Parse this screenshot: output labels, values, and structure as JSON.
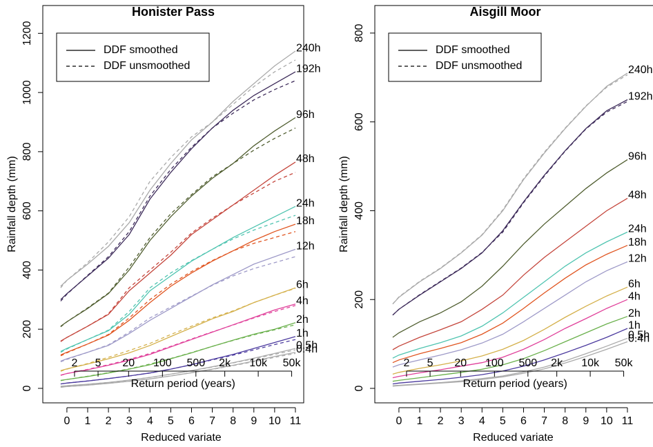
{
  "chart_data": [
    {
      "type": "line",
      "title": "Honister Pass",
      "xlabel": "Reduced variate",
      "ylabel": "Rainfall depth (mm)",
      "legend": [
        "DDF smoothed",
        "DDF unsmoothed"
      ],
      "x": [
        -0.3,
        0,
        1,
        2,
        3,
        4,
        5,
        6,
        7,
        8,
        9,
        10,
        11
      ],
      "xlim": [
        -1.16,
        11.4
      ],
      "ylim": [
        -49,
        1294
      ],
      "xticks": [
        0,
        1,
        2,
        3,
        4,
        5,
        6,
        7,
        8,
        9,
        10,
        11
      ],
      "yticks": [
        0,
        200,
        400,
        600,
        800,
        1000,
        1200
      ],
      "rp_label": "Return period (years)",
      "rp_ticks": [
        {
          "value": 0.367,
          "label": "2"
        },
        {
          "value": 1.5,
          "label": "5"
        },
        {
          "value": 2.97,
          "label": "20"
        },
        {
          "value": 4.6,
          "label": "100"
        },
        {
          "value": 6.21,
          "label": "500"
        },
        {
          "value": 7.6,
          "label": "2k"
        },
        {
          "value": 9.21,
          "label": "10k"
        },
        {
          "value": 10.82,
          "label": "50k"
        }
      ],
      "series": [
        {
          "name": "240h",
          "color": "#aaaaaa",
          "label_color": "#aaaaaa",
          "smoothed": [
            345,
            365,
            420,
            480,
            560,
            670,
            760,
            840,
            900,
            970,
            1030,
            1090,
            1140
          ],
          "unsmoothed": [
            340,
            365,
            425,
            495,
            580,
            700,
            780,
            850,
            900,
            960,
            1020,
            1070,
            1110
          ]
        },
        {
          "name": "192h",
          "color": "#3d2b5a",
          "label_color": "#000000",
          "smoothed": [
            300,
            320,
            380,
            440,
            520,
            640,
            730,
            810,
            880,
            940,
            990,
            1030,
            1070
          ],
          "unsmoothed": [
            295,
            318,
            382,
            445,
            530,
            650,
            740,
            815,
            880,
            930,
            975,
            1010,
            1040
          ]
        },
        {
          "name": "96h",
          "color": "#4f5d2f",
          "label_color": "#000000",
          "smoothed": [
            210,
            225,
            270,
            320,
            400,
            500,
            580,
            650,
            710,
            760,
            820,
            870,
            915
          ],
          "unsmoothed": [
            208,
            225,
            272,
            322,
            410,
            510,
            590,
            655,
            715,
            760,
            805,
            845,
            880
          ]
        },
        {
          "name": "48h",
          "color": "#c4453b",
          "label_color": "#000000",
          "smoothed": [
            160,
            172,
            210,
            250,
            330,
            390,
            450,
            520,
            570,
            620,
            670,
            720,
            765
          ],
          "unsmoothed": [
            158,
            172,
            210,
            252,
            340,
            400,
            460,
            525,
            575,
            620,
            660,
            700,
            730
          ]
        },
        {
          "name": "24h",
          "color": "#4fc4b0",
          "label_color": "#000000",
          "smoothed": [
            125,
            135,
            165,
            195,
            250,
            330,
            380,
            430,
            470,
            510,
            545,
            580,
            615
          ],
          "unsmoothed": [
            122,
            133,
            165,
            197,
            260,
            340,
            390,
            432,
            470,
            505,
            535,
            560,
            585
          ]
        },
        {
          "name": "18h",
          "color": "#e0541f",
          "label_color": "#000000",
          "smoothed": [
            113,
            122,
            150,
            180,
            230,
            290,
            345,
            390,
            430,
            465,
            500,
            530,
            555
          ],
          "unsmoothed": [
            110,
            120,
            150,
            182,
            238,
            300,
            352,
            395,
            432,
            465,
            490,
            510,
            530
          ]
        },
        {
          "name": "12h",
          "color": "#9e9ac8",
          "label_color": "#000000",
          "smoothed": [
            92,
            100,
            122,
            145,
            185,
            230,
            270,
            310,
            350,
            385,
            420,
            445,
            470
          ],
          "unsmoothed": [
            90,
            98,
            122,
            147,
            190,
            238,
            275,
            312,
            348,
            380,
            405,
            425,
            445
          ]
        },
        {
          "name": "6h",
          "color": "#d4b04a",
          "label_color": "#000000",
          "smoothed": [
            60,
            66,
            82,
            100,
            120,
            145,
            175,
            205,
            235,
            260,
            290,
            315,
            340
          ],
          "unsmoothed": [
            58,
            65,
            84,
            105,
            128,
            152,
            182,
            210,
            238,
            262,
            290,
            315,
            338
          ]
        },
        {
          "name": "4h",
          "color": "#e0409a",
          "label_color": "#000000",
          "smoothed": [
            45,
            50,
            63,
            78,
            95,
            115,
            140,
            165,
            190,
            215,
            240,
            265,
            285
          ],
          "unsmoothed": [
            44,
            50,
            64,
            80,
            98,
            118,
            142,
            167,
            191,
            214,
            238,
            260,
            280
          ]
        },
        {
          "name": "2h",
          "color": "#6ab04c",
          "label_color": "#000000",
          "smoothed": [
            27,
            30,
            40,
            52,
            65,
            80,
            100,
            120,
            142,
            163,
            183,
            200,
            222
          ],
          "unsmoothed": [
            26,
            30,
            41,
            53,
            66,
            82,
            101,
            121,
            142,
            162,
            181,
            198,
            215
          ]
        },
        {
          "name": "1h",
          "color": "#4b3a9e",
          "label_color": "#000000",
          "smoothed": [
            15,
            18,
            25,
            33,
            42,
            52,
            65,
            80,
            98,
            115,
            135,
            155,
            175
          ],
          "unsmoothed": [
            15,
            18,
            25,
            33,
            42,
            52,
            65,
            80,
            96,
            112,
            130,
            148,
            165
          ]
        },
        {
          "name": "0.5h",
          "color": "#aaaaaa",
          "label_color": "#aaaaaa",
          "smoothed": [
            7,
            9,
            14,
            20,
            28,
            37,
            48,
            60,
            73,
            87,
            102,
            118,
            135
          ],
          "unsmoothed": [
            7,
            9,
            14,
            20,
            28,
            37,
            48,
            60,
            72,
            86,
            100,
            115,
            130
          ]
        },
        {
          "name": "0.4h",
          "color": "#aaaaaa",
          "label_color": "#aaaaaa",
          "smoothed": [
            4,
            6,
            11,
            17,
            24,
            32,
            42,
            53,
            65,
            78,
            92,
            108,
            122
          ],
          "unsmoothed": [
            4,
            6,
            11,
            17,
            24,
            32,
            42,
            53,
            64,
            77,
            90,
            105,
            118
          ]
        }
      ]
    },
    {
      "type": "line",
      "title": "Aisgill Moor",
      "xlabel": "Reduced variate",
      "ylabel": "Rainfall depth (mm)",
      "legend": [
        "DDF smoothed",
        "DDF unsmoothed"
      ],
      "x": [
        -0.3,
        0,
        1,
        2,
        3,
        4,
        5,
        6,
        7,
        8,
        9,
        10,
        11
      ],
      "xlim": [
        -1.16,
        11.4
      ],
      "ylim": [
        -32.6,
        862
      ],
      "xticks": [
        0,
        1,
        2,
        3,
        4,
        5,
        6,
        7,
        8,
        9,
        10,
        11
      ],
      "yticks": [
        0,
        200,
        400,
        600,
        800
      ],
      "rp_label": "Return period (years)",
      "rp_ticks": [
        {
          "value": 0.367,
          "label": "2"
        },
        {
          "value": 1.5,
          "label": "5"
        },
        {
          "value": 2.97,
          "label": "20"
        },
        {
          "value": 4.6,
          "label": "100"
        },
        {
          "value": 6.21,
          "label": "500"
        },
        {
          "value": 7.6,
          "label": "2k"
        },
        {
          "value": 9.21,
          "label": "10k"
        },
        {
          "value": 10.82,
          "label": "50k"
        }
      ],
      "series": [
        {
          "name": "240h",
          "color": "#aaaaaa",
          "label_color": "#aaaaaa",
          "smoothed": [
            190,
            205,
            240,
            270,
            305,
            345,
            400,
            470,
            530,
            585,
            635,
            680,
            710
          ],
          "unsmoothed": [
            190,
            206,
            241,
            271,
            306,
            346,
            402,
            472,
            532,
            586,
            636,
            678,
            706
          ]
        },
        {
          "name": "192h",
          "color": "#3d2b5a",
          "label_color": "#000000",
          "smoothed": [
            165,
            178,
            210,
            240,
            270,
            305,
            355,
            420,
            480,
            535,
            585,
            625,
            650
          ],
          "unsmoothed": [
            165,
            178,
            211,
            241,
            271,
            306,
            352,
            418,
            478,
            534,
            584,
            622,
            646
          ]
        },
        {
          "name": "96h",
          "color": "#4f5d2f",
          "label_color": "#000000",
          "smoothed": [
            115,
            125,
            150,
            170,
            195,
            230,
            275,
            325,
            370,
            410,
            450,
            485,
            515
          ]
        },
        {
          "name": "48h",
          "color": "#c4453b",
          "label_color": "#000000",
          "smoothed": [
            87,
            95,
            115,
            132,
            150,
            178,
            210,
            255,
            295,
            330,
            365,
            400,
            428
          ]
        },
        {
          "name": "24h",
          "color": "#4fc4b0",
          "label_color": "#000000",
          "smoothed": [
            68,
            75,
            90,
            103,
            118,
            140,
            170,
            205,
            240,
            275,
            305,
            330,
            352
          ]
        },
        {
          "name": "18h",
          "color": "#e0541f",
          "label_color": "#000000",
          "smoothed": [
            58,
            64,
            78,
            90,
            103,
            122,
            147,
            180,
            215,
            248,
            278,
            302,
            322
          ]
        },
        {
          "name": "12h",
          "color": "#9e9ac8",
          "label_color": "#000000",
          "smoothed": [
            48,
            53,
            64,
            75,
            87,
            102,
            122,
            150,
            180,
            210,
            240,
            265,
            285
          ]
        },
        {
          "name": "6h",
          "color": "#d4b04a",
          "label_color": "#000000",
          "smoothed": [
            32,
            36,
            45,
            53,
            62,
            73,
            88,
            108,
            133,
            160,
            185,
            208,
            228
          ]
        },
        {
          "name": "4h",
          "color": "#e0409a",
          "label_color": "#000000",
          "smoothed": [
            24,
            27,
            35,
            42,
            50,
            58,
            70,
            88,
            110,
            135,
            157,
            180,
            200
          ]
        },
        {
          "name": "2h",
          "color": "#6ab04c",
          "label_color": "#000000",
          "smoothed": [
            16,
            18,
            24,
            30,
            36,
            43,
            53,
            67,
            85,
            105,
            125,
            145,
            162
          ]
        },
        {
          "name": "1h",
          "color": "#4b3a9e",
          "label_color": "#000000",
          "smoothed": [
            10,
            12,
            16,
            20,
            25,
            31,
            39,
            50,
            64,
            80,
            97,
            115,
            135
          ]
        },
        {
          "name": "0.5h",
          "color": "#aaaaaa",
          "label_color": "#aaaaaa",
          "smoothed": [
            6,
            7,
            10,
            13,
            17,
            22,
            28,
            37,
            48,
            62,
            78,
            95,
            113
          ]
        },
        {
          "name": "0.4h",
          "color": "#aaaaaa",
          "label_color": "#aaaaaa",
          "smoothed": [
            5,
            6,
            9,
            12,
            15,
            20,
            26,
            34,
            44,
            57,
            72,
            88,
            105
          ]
        }
      ]
    }
  ]
}
